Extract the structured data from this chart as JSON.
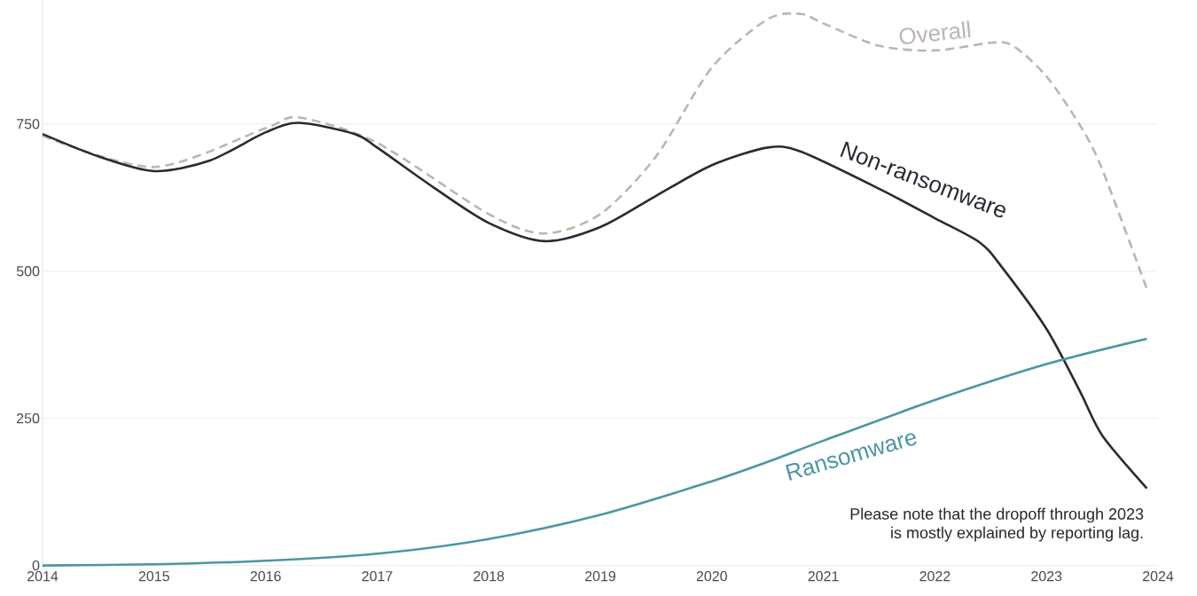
{
  "chart_data": {
    "type": "line",
    "xlim": [
      2014,
      2024
    ],
    "ylim": [
      -5,
      960
    ],
    "xticks": [
      2014,
      2015,
      2016,
      2017,
      2018,
      2019,
      2020,
      2021,
      2022,
      2023,
      2024
    ],
    "yticks": [
      0,
      250,
      500,
      750
    ],
    "grid": "y",
    "series": [
      {
        "name": "Overall",
        "color": "#bdb5b0",
        "line_style": "dashed",
        "x": [
          2014,
          2015,
          2016,
          2016.3,
          2017,
          2018,
          2018.5,
          2019,
          2019.5,
          2020,
          2020.5,
          2020.8,
          2021,
          2021.5,
          2022,
          2022.5,
          2022.7,
          2023,
          2023.3,
          2023.5,
          2023.9
        ],
        "values": [
          730,
          677,
          743,
          761,
          718,
          597,
          564,
          597,
          695,
          846,
          928,
          937,
          921,
          883,
          875,
          888,
          883,
          831,
          748,
          673,
          470
        ]
      },
      {
        "name": "Non-ransomware",
        "color": "#2a2a33",
        "line_style": "solid",
        "x": [
          2014,
          2014.5,
          2015,
          2015.5,
          2016,
          2016.3,
          2016.8,
          2017,
          2017.5,
          2018,
          2018.5,
          2019,
          2019.5,
          2020,
          2020.5,
          2020.8,
          2021.5,
          2022,
          2022.4,
          2022.6,
          2023,
          2023.3,
          2023.5,
          2023.9
        ],
        "values": [
          733,
          695,
          670,
          688,
          736,
          752,
          733,
          710,
          643,
          582,
          551,
          575,
          628,
          680,
          710,
          703,
          640,
          590,
          549,
          507,
          402,
          296,
          221,
          131
        ]
      },
      {
        "name": "Ransomware",
        "color": "#4a97a3",
        "line_style": "solid",
        "x": [
          2014,
          2015,
          2016,
          2017,
          2018,
          2019,
          2020,
          2020.5,
          2021,
          2022,
          2023,
          2023.9
        ],
        "values": [
          0,
          2,
          8,
          20,
          45,
          86,
          143,
          176,
          212,
          281,
          342,
          385
        ]
      }
    ],
    "annotations": [
      "Please note that the dropoff through 2023",
      "is mostly explained by reporting lag."
    ]
  }
}
